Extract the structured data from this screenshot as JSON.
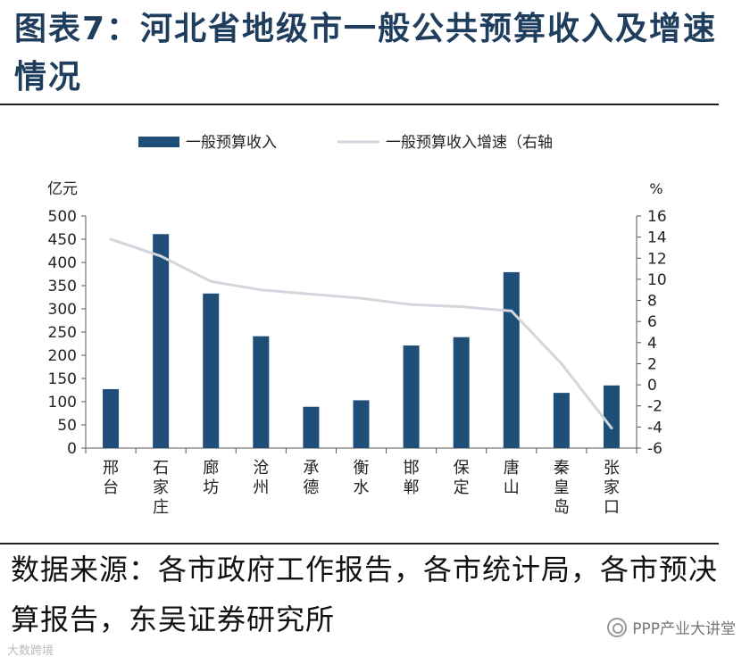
{
  "title": "图表7：河北省地级市一般公共预算收入及增速情况",
  "source": "数据来源：各市政府工作报告，各市统计局，各市预决算报告，东吴证券研究所",
  "watermark": "PPP产业大讲堂",
  "corner_watermark": "大数跨境",
  "colors": {
    "bar": "#1f4e79",
    "line": "#d3d6dc",
    "title": "#1f3d5c"
  },
  "chart_data": {
    "type": "bar",
    "categories": [
      "邢台",
      "石家庄",
      "廊坊",
      "沧州",
      "承德",
      "衡水",
      "邯郸",
      "保定",
      "唐山",
      "秦皇岛",
      "张家口"
    ],
    "series": [
      {
        "name": "一般预算收入",
        "type": "bar",
        "axis": "left",
        "values": [
          127,
          461,
          333,
          241,
          89,
          103,
          221,
          239,
          379,
          119,
          135
        ]
      },
      {
        "name": "一般预算收入增速（右轴",
        "type": "line",
        "axis": "right",
        "values": [
          13.8,
          12.2,
          9.8,
          9.0,
          8.6,
          8.2,
          7.6,
          7.4,
          7.0,
          2.0,
          -4.1
        ]
      }
    ],
    "ylabel": "亿元",
    "y2label": "%",
    "ylim": [
      0,
      500
    ],
    "yticks": [
      0,
      50,
      100,
      150,
      200,
      250,
      300,
      350,
      400,
      450,
      500
    ],
    "y2lim": [
      -6,
      16
    ],
    "y2ticks": [
      -6,
      -4,
      -2,
      0,
      2,
      4,
      6,
      8,
      10,
      12,
      14,
      16
    ],
    "legend": "top"
  }
}
